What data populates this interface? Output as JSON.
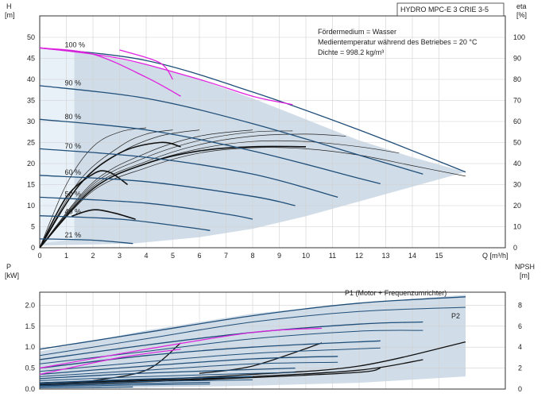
{
  "title": "HYDRO MPC-E 3 CRIE 3-5",
  "info_lines": [
    "Fördermedium = Wasser",
    "Medientemperatur während des Betriebes = 20 °C",
    "Dichte = 998.2 kg/m³"
  ],
  "chart_data": [
    {
      "type": "line",
      "name": "head-efficiency",
      "xlabel": "Q [m³/h]",
      "ylabel": "H [m]",
      "ylabel_right": "eta [%]",
      "xlim": [
        0,
        16
      ],
      "ylim": [
        0,
        50
      ],
      "ylim_right": [
        0,
        100
      ],
      "x_ticks": [
        0,
        1,
        2,
        3,
        4,
        5,
        6,
        7,
        8,
        9,
        10,
        11,
        12,
        13,
        14,
        15
      ],
      "y_ticks": [
        0,
        5,
        10,
        15,
        20,
        25,
        30,
        35,
        40,
        45,
        50
      ],
      "y_ticks_right": [
        0,
        10,
        20,
        30,
        40,
        50,
        60,
        70,
        80,
        90,
        100
      ],
      "grid": true,
      "speed_labels": [
        {
          "text": "100 %",
          "q": 1.0,
          "h": 47.3
        },
        {
          "text": "90 %",
          "q": 1.0,
          "h": 38.2
        },
        {
          "text": "80 %",
          "q": 1.0,
          "h": 30.2
        },
        {
          "text": "70 %",
          "q": 1.0,
          "h": 23.2
        },
        {
          "text": "60 %",
          "q": 1.0,
          "h": 17.0
        },
        {
          "text": "50 %",
          "q": 1.0,
          "h": 11.8
        },
        {
          "text": "40 %",
          "q": 1.0,
          "h": 7.6
        },
        {
          "text": "21 %",
          "q": 1.0,
          "h": 2.1
        }
      ],
      "envelope": {
        "upper": [
          [
            0,
            47.5
          ],
          [
            2,
            46
          ],
          [
            4,
            43.5
          ],
          [
            6,
            40
          ],
          [
            8,
            35.5
          ],
          [
            10,
            30.5
          ],
          [
            12,
            25.5
          ],
          [
            14,
            21.5
          ],
          [
            16,
            18
          ]
        ],
        "lower": [
          [
            3.5,
            1.0
          ],
          [
            6,
            2.5
          ],
          [
            8,
            4.5
          ],
          [
            10,
            7.5
          ],
          [
            12,
            11
          ],
          [
            14,
            14.5
          ],
          [
            16,
            18
          ]
        ],
        "left": [
          [
            0,
            47.5
          ],
          [
            0,
            0.5
          ],
          [
            3.5,
            1.0
          ]
        ]
      },
      "speed_curves": [
        {
          "speed": 1.0,
          "pts": [
            [
              0,
              47.5
            ],
            [
              4,
              44.5
            ],
            [
              8,
              37
            ],
            [
              12,
              28
            ],
            [
              16,
              18
            ]
          ]
        },
        {
          "speed": 0.9,
          "pts": [
            [
              0,
              38.5
            ],
            [
              4,
              35.5
            ],
            [
              8,
              29.5
            ],
            [
              12,
              22
            ],
            [
              14.4,
              17.5
            ]
          ]
        },
        {
          "speed": 0.8,
          "pts": [
            [
              0,
              30.5
            ],
            [
              4,
              28
            ],
            [
              8,
              23
            ],
            [
              12,
              16.5
            ],
            [
              12.8,
              15.2
            ]
          ]
        },
        {
          "speed": 0.7,
          "pts": [
            [
              0,
              23.5
            ],
            [
              4,
              21.5
            ],
            [
              8,
              17.5
            ],
            [
              11.2,
              12.0
            ]
          ]
        },
        {
          "speed": 0.6,
          "pts": [
            [
              0,
              17.2
            ],
            [
              4,
              15.7
            ],
            [
              8,
              12.2
            ],
            [
              9.6,
              10.0
            ]
          ]
        },
        {
          "speed": 0.5,
          "pts": [
            [
              0,
              12.0
            ],
            [
              4,
              10.6
            ],
            [
              7,
              8.0
            ],
            [
              8.0,
              6.8
            ]
          ]
        },
        {
          "speed": 0.4,
          "pts": [
            [
              0,
              7.6
            ],
            [
              3,
              6.8
            ],
            [
              5.5,
              4.9
            ],
            [
              6.4,
              4.1
            ]
          ]
        },
        {
          "speed": 0.21,
          "pts": [
            [
              0,
              2.1
            ],
            [
              2,
              1.8
            ],
            [
              3.5,
              1.0
            ]
          ]
        }
      ],
      "efficiency_curves": [
        {
          "pts": [
            [
              0,
              0
            ],
            [
              2,
              27
            ],
            [
              4,
              38
            ],
            [
              6,
              45
            ],
            [
              8,
              47.5
            ],
            [
              10,
              47
            ],
            [
              12,
              44
            ],
            [
              14,
              39
            ],
            [
              16,
              34
            ]
          ]
        },
        {
          "pts": [
            [
              0,
              0
            ],
            [
              2,
              28
            ],
            [
              4,
              40
            ],
            [
              6,
              47
            ],
            [
              8,
              50.5
            ],
            [
              10,
              50.5
            ],
            [
              12,
              48
            ],
            [
              13.5,
              45
            ]
          ]
        },
        {
          "pts": [
            [
              0,
              0
            ],
            [
              2,
              29
            ],
            [
              4,
              41
            ],
            [
              6,
              49
            ],
            [
              8,
              53
            ],
            [
              10,
              54
            ],
            [
              11.5,
              53
            ]
          ]
        },
        {
          "pts": [
            [
              0,
              0
            ],
            [
              2,
              30
            ],
            [
              4,
              43
            ],
            [
              6,
              51
            ],
            [
              8,
              55
            ],
            [
              9.5,
              55.5
            ]
          ]
        },
        {
          "pts": [
            [
              0,
              0
            ],
            [
              2,
              31
            ],
            [
              4,
              45
            ],
            [
              6,
              53
            ],
            [
              8,
              56
            ]
          ]
        },
        {
          "pts": [
            [
              0,
              0
            ],
            [
              1.5,
              30
            ],
            [
              3,
              45
            ],
            [
              4.5,
              53
            ],
            [
              6,
              56
            ]
          ]
        },
        {
          "pts": [
            [
              0,
              0
            ],
            [
              1.5,
              32
            ],
            [
              3,
              48
            ],
            [
              4,
              54
            ],
            [
              5,
              56
            ]
          ]
        },
        {
          "pts": [
            [
              0,
              0
            ],
            [
              1,
              30
            ],
            [
              2,
              48
            ],
            [
              3,
              55
            ],
            [
              4,
              57
            ]
          ]
        }
      ],
      "bold_curves": [
        {
          "pts": [
            [
              0,
              0
            ],
            [
              2,
              28
            ],
            [
              4,
              40
            ],
            [
              6,
              46
            ],
            [
              8,
              48
            ],
            [
              10,
              48
            ]
          ]
        },
        {
          "pts": [
            [
              0,
              0
            ],
            [
              1.5,
              30
            ],
            [
              3,
              45
            ],
            [
              4.5,
              50
            ],
            [
              5.3,
              48
            ]
          ]
        },
        {
          "pts": [
            [
              0,
              0
            ],
            [
              1,
              24
            ],
            [
              2,
              35
            ],
            [
              2.6,
              36
            ],
            [
              3.3,
              30
            ]
          ]
        },
        {
          "pts": [
            [
              1.2,
              15
            ],
            [
              2,
              18
            ],
            [
              2.8,
              16.5
            ],
            [
              3.6,
              13.5
            ]
          ]
        }
      ],
      "magenta_curves": [
        {
          "pts": [
            [
              0,
              47.5
            ],
            [
              2,
              46
            ],
            [
              4,
              40.5
            ],
            [
              5.3,
              36
            ]
          ]
        },
        {
          "pts": [
            [
              0,
              47.5
            ],
            [
              3,
              45
            ],
            [
              6,
              40
            ],
            [
              8,
              36
            ],
            [
              9.5,
              34
            ]
          ]
        },
        {
          "pts": [
            [
              3,
              47
            ],
            [
              4.5,
              44
            ],
            [
              5,
              40
            ]
          ]
        }
      ]
    },
    {
      "type": "line",
      "name": "power-npsh",
      "ylabel": "P [kW]",
      "ylabel_right": "NPSH [m]",
      "xlim": [
        0,
        16
      ],
      "ylim": [
        0,
        2.5
      ],
      "ylim_right": [
        0,
        10
      ],
      "y_ticks": [
        0.0,
        0.5,
        1.0,
        1.5,
        2.0
      ],
      "y_ticks_right": [
        0,
        2,
        4,
        6,
        8
      ],
      "series_labels": [
        "P1 (Motor + Frequenzumrichter)",
        "P2"
      ],
      "p1_curves": [
        {
          "pts": [
            [
              0,
              0.95
            ],
            [
              4,
              1.35
            ],
            [
              8,
              1.75
            ],
            [
              12,
              2.05
            ],
            [
              16,
              2.2
            ]
          ]
        },
        {
          "pts": [
            [
              0,
              0.7
            ],
            [
              4,
              1.05
            ],
            [
              8,
              1.35
            ],
            [
              12,
              1.55
            ],
            [
              14.4,
              1.6
            ]
          ]
        },
        {
          "pts": [
            [
              0,
              0.5
            ],
            [
              4,
              0.8
            ],
            [
              8,
              1.0
            ],
            [
              12.8,
              1.15
            ]
          ]
        },
        {
          "pts": [
            [
              0,
              0.35
            ],
            [
              4,
              0.55
            ],
            [
              8,
              0.72
            ],
            [
              11.2,
              0.78
            ]
          ]
        },
        {
          "pts": [
            [
              0,
              0.25
            ],
            [
              4,
              0.38
            ],
            [
              9.6,
              0.5
            ]
          ]
        },
        {
          "pts": [
            [
              0,
              0.15
            ],
            [
              4,
              0.24
            ],
            [
              8.0,
              0.3
            ]
          ]
        },
        {
          "pts": [
            [
              0,
              0.08
            ],
            [
              3,
              0.12
            ],
            [
              6.4,
              0.16
            ]
          ]
        },
        {
          "pts": [
            [
              0,
              0.03
            ],
            [
              3.5,
              0.05
            ]
          ]
        }
      ],
      "p2_curves": [
        {
          "pts": [
            [
              0,
              0.8
            ],
            [
              4,
              1.2
            ],
            [
              8,
              1.6
            ],
            [
              12,
              1.85
            ],
            [
              16,
              1.95
            ]
          ]
        },
        {
          "pts": [
            [
              0,
              0.6
            ],
            [
              4,
              0.9
            ],
            [
              8,
              1.2
            ],
            [
              12,
              1.38
            ],
            [
              14.4,
              1.4
            ]
          ]
        },
        {
          "pts": [
            [
              0,
              0.42
            ],
            [
              4,
              0.65
            ],
            [
              8,
              0.85
            ],
            [
              12.8,
              0.98
            ]
          ]
        },
        {
          "pts": [
            [
              0,
              0.3
            ],
            [
              4,
              0.45
            ],
            [
              8,
              0.6
            ],
            [
              11.2,
              0.64
            ]
          ]
        },
        {
          "pts": [
            [
              0,
              0.2
            ],
            [
              4,
              0.3
            ],
            [
              9.6,
              0.4
            ]
          ]
        },
        {
          "pts": [
            [
              0,
              0.12
            ],
            [
              4,
              0.18
            ],
            [
              8.0,
              0.22
            ]
          ]
        },
        {
          "pts": [
            [
              0,
              0.06
            ],
            [
              3,
              0.09
            ],
            [
              6.4,
              0.12
            ]
          ]
        }
      ],
      "npsh_curves": [
        {
          "pts": [
            [
              0,
              0.6
            ],
            [
              4,
              0.9
            ],
            [
              8,
              1.4
            ],
            [
              12,
              2.2
            ],
            [
              16,
              4.5
            ]
          ]
        },
        {
          "pts": [
            [
              0,
              0.5
            ],
            [
              4,
              0.8
            ],
            [
              8,
              1.2
            ],
            [
              12,
              1.8
            ],
            [
              14.4,
              2.8
            ]
          ]
        },
        {
          "pts": [
            [
              0,
              0.4
            ],
            [
              4,
              0.7
            ],
            [
              8,
              1.1
            ],
            [
              12,
              1.6
            ],
            [
              12.8,
              2.0
            ]
          ]
        },
        {
          "pts": [
            [
              2,
              0.8
            ],
            [
              4,
              1.8
            ],
            [
              5.3,
              4.4
            ]
          ]
        },
        {
          "pts": [
            [
              6,
              1.5
            ],
            [
              8,
              2.2
            ],
            [
              10.6,
              4.4
            ]
          ]
        }
      ],
      "magenta_curves": [
        {
          "pts": [
            [
              0,
              0.5
            ],
            [
              4,
              0.95
            ],
            [
              8,
              1.35
            ],
            [
              10.6,
              1.45
            ]
          ]
        },
        {
          "pts": [
            [
              0,
              0.35
            ],
            [
              3,
              0.75
            ],
            [
              5.3,
              0.95
            ]
          ]
        }
      ]
    }
  ]
}
